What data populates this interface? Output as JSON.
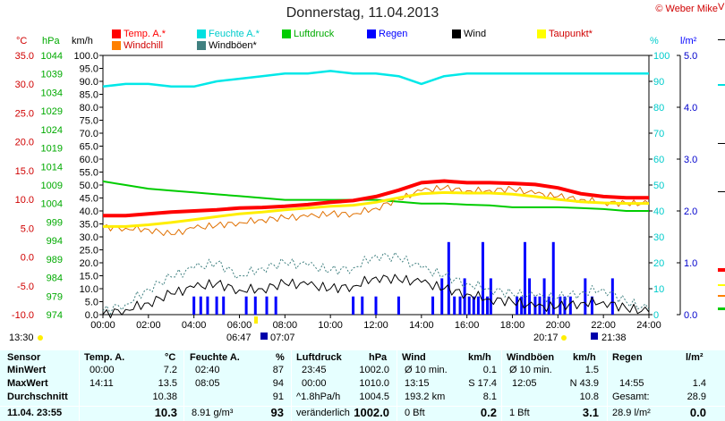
{
  "header": {
    "title": "Donnerstag, 11.04.2013",
    "copyright": "© Weber Mike"
  },
  "legend": [
    {
      "label": "Temp. A.*",
      "color": "#ff0000"
    },
    {
      "label": "Feuchte A.*",
      "color": "#00e0e0"
    },
    {
      "label": "Luftdruck",
      "color": "#00cc00"
    },
    {
      "label": "Regen",
      "color": "#0000ff"
    },
    {
      "label": "Wind",
      "color": "#000000"
    },
    {
      "label": "Taupunkt*",
      "color": "#ffff00"
    },
    {
      "label": "Windchill",
      "color": "#ff8000"
    },
    {
      "label": "Windböen*",
      "color": "#408080"
    }
  ],
  "axes": {
    "temp_unit": "°C",
    "press_unit": "hPa",
    "wind_unit": "km/h",
    "hum_unit": "%",
    "rain_unit": "l/m²",
    "temp_ticks": [
      "35.0",
      "30.0",
      "25.0",
      "20.0",
      "15.0",
      "10.0",
      "5.0",
      "0.0",
      "-5.0",
      "-10.0"
    ],
    "press_ticks": [
      "1044",
      "1039",
      "1034",
      "1029",
      "1024",
      "1019",
      "1014",
      "1009",
      "1004",
      "999",
      "994",
      "989",
      "984",
      "979",
      "974"
    ],
    "wind_ticks": [
      "100.0",
      "95.0",
      "90.0",
      "85.0",
      "80.0",
      "75.0",
      "70.0",
      "65.0",
      "60.0",
      "55.0",
      "50.0",
      "45.0",
      "40.0",
      "35.0",
      "30.0",
      "25.0",
      "20.0",
      "15.0",
      "10.0",
      "5.0",
      "0.0"
    ],
    "hum_ticks": [
      "100",
      "90",
      "80",
      "70",
      "60",
      "50",
      "40",
      "30",
      "20",
      "10",
      "0"
    ],
    "rain_ticks": [
      "5.0",
      "4.0",
      "3.0",
      "2.0",
      "1.0",
      "0.0"
    ],
    "x_ticks": [
      "00:00",
      "02:00",
      "04:00",
      "06:00",
      "08:00",
      "10:00",
      "12:00",
      "14:00",
      "16:00",
      "18:00",
      "20:00",
      "22:00",
      "24:00"
    ]
  },
  "sun": {
    "left_time": "13:30",
    "sunrise": "06:47",
    "moonset": "07:07",
    "sunset": "20:17",
    "moonrise": "21:38"
  },
  "chart_data": {
    "type": "line",
    "title": "Donnerstag, 11.04.2013",
    "x": [
      "00:00",
      "01:00",
      "02:00",
      "03:00",
      "04:00",
      "05:00",
      "06:00",
      "07:00",
      "08:00",
      "09:00",
      "10:00",
      "11:00",
      "12:00",
      "13:00",
      "14:00",
      "15:00",
      "16:00",
      "17:00",
      "18:00",
      "19:00",
      "20:00",
      "21:00",
      "22:00",
      "23:00",
      "24:00"
    ],
    "ylim_temp": [
      -10,
      35
    ],
    "series": [
      {
        "name": "Temp. A.*",
        "axis": "temp",
        "values": [
          7.2,
          7.2,
          7.5,
          7.8,
          8.0,
          8.2,
          8.5,
          8.6,
          8.8,
          9.1,
          9.5,
          9.8,
          10.5,
          11.6,
          12.9,
          13.2,
          12.9,
          12.9,
          12.8,
          12.6,
          12.0,
          11.0,
          10.5,
          10.3,
          10.3
        ]
      },
      {
        "name": "Taupunkt*",
        "axis": "temp",
        "values": [
          5.3,
          5.3,
          5.6,
          6.0,
          6.5,
          7.0,
          7.5,
          7.8,
          8.2,
          8.5,
          8.8,
          9.0,
          9.5,
          10.3,
          11.0,
          11.2,
          11.1,
          11.1,
          10.9,
          10.5,
          10.0,
          9.6,
          9.4,
          9.3,
          9.3
        ]
      },
      {
        "name": "Windchill",
        "axis": "temp",
        "values": [
          5.2,
          5.0,
          4.8,
          3.9,
          5.0,
          5.5,
          6.0,
          6.5,
          6.8,
          7.0,
          7.5,
          7.5,
          8.5,
          10.0,
          11.5,
          12.0,
          11.5,
          11.6,
          11.8,
          11.0,
          10.5,
          10.0,
          9.5,
          9.3,
          9.3
        ]
      },
      {
        "name": "Feuchte A.*",
        "axis": "hum",
        "values": [
          88,
          89,
          89,
          88,
          88,
          90,
          91,
          92,
          93,
          93,
          94,
          93,
          93,
          92,
          89,
          92,
          93,
          93,
          93,
          93,
          93,
          93,
          93,
          93,
          93
        ]
      },
      {
        "name": "Luftdruck",
        "axis": "press",
        "values": [
          1010.0,
          1009.0,
          1008.0,
          1007.5,
          1007.0,
          1006.5,
          1006.0,
          1005.5,
          1005.0,
          1005.0,
          1005.0,
          1005.0,
          1005.0,
          1004.5,
          1004.0,
          1004.0,
          1003.7,
          1003.5,
          1003.0,
          1003.0,
          1003.0,
          1002.8,
          1002.5,
          1002.0,
          1002.0
        ]
      },
      {
        "name": "Wind",
        "axis": "wind",
        "values": [
          0.1,
          2.0,
          4.5,
          8.0,
          10.5,
          12.0,
          9.5,
          10.0,
          12.0,
          11.5,
          10.0,
          11.0,
          14.5,
          13.5,
          12.5,
          10.0,
          8.0,
          6.0,
          5.0,
          3.0,
          3.0,
          4.5,
          5.0,
          2.5,
          1.0
        ]
      },
      {
        "name": "Windböen*",
        "axis": "wind",
        "values": [
          1.5,
          4.0,
          10.0,
          14.5,
          18.0,
          20.0,
          15.0,
          18.0,
          20.0,
          19.0,
          17.0,
          18.0,
          23.0,
          22.0,
          18.0,
          15.0,
          12.0,
          10.0,
          8.0,
          7.0,
          6.5,
          8.5,
          10.0,
          5.0,
          2.0
        ]
      }
    ],
    "rain_bars": [
      {
        "t": 4.0,
        "v": 0.35
      },
      {
        "t": 4.3,
        "v": 0.35
      },
      {
        "t": 4.6,
        "v": 0.35
      },
      {
        "t": 5.0,
        "v": 0.35
      },
      {
        "t": 5.3,
        "v": 0.35
      },
      {
        "t": 6.3,
        "v": 0.35
      },
      {
        "t": 6.7,
        "v": 0.35
      },
      {
        "t": 7.2,
        "v": 0.35
      },
      {
        "t": 7.6,
        "v": 0.35
      },
      {
        "t": 11.0,
        "v": 0.35
      },
      {
        "t": 11.4,
        "v": 0.35
      },
      {
        "t": 12.0,
        "v": 0.35
      },
      {
        "t": 13.0,
        "v": 0.35
      },
      {
        "t": 14.5,
        "v": 0.35
      },
      {
        "t": 14.9,
        "v": 0.7
      },
      {
        "t": 15.2,
        "v": 1.4
      },
      {
        "t": 15.45,
        "v": 0.35
      },
      {
        "t": 15.7,
        "v": 0.35
      },
      {
        "t": 15.9,
        "v": 0.7
      },
      {
        "t": 16.1,
        "v": 0.35
      },
      {
        "t": 16.3,
        "v": 0.35
      },
      {
        "t": 16.5,
        "v": 0.35
      },
      {
        "t": 16.7,
        "v": 1.4
      },
      {
        "t": 16.9,
        "v": 0.35
      },
      {
        "t": 17.05,
        "v": 0.7
      },
      {
        "t": 18.2,
        "v": 0.35
      },
      {
        "t": 18.4,
        "v": 0.35
      },
      {
        "t": 18.55,
        "v": 1.4
      },
      {
        "t": 18.75,
        "v": 0.7
      },
      {
        "t": 19.0,
        "v": 0.35
      },
      {
        "t": 19.2,
        "v": 0.35
      },
      {
        "t": 19.4,
        "v": 0.7
      },
      {
        "t": 19.6,
        "v": 0.35
      },
      {
        "t": 19.8,
        "v": 1.4
      },
      {
        "t": 20.1,
        "v": 0.35
      },
      {
        "t": 20.3,
        "v": 0.35
      },
      {
        "t": 20.55,
        "v": 0.35
      },
      {
        "t": 21.2,
        "v": 0.7
      },
      {
        "t": 21.5,
        "v": 0.35
      },
      {
        "t": 22.4,
        "v": 0.7
      }
    ],
    "rain_ylim": [
      0,
      5
    ],
    "ylim_press": [
      974,
      1044
    ],
    "ylim_wind": [
      0,
      100
    ],
    "ylim_hum": [
      0,
      100
    ],
    "frost_line": 0.0
  },
  "summary": {
    "sensor": {
      "header": "Sensor",
      "rows": [
        "MinWert",
        "MaxWert",
        "Durchschnitt",
        "11.04. 23:55"
      ]
    },
    "temp": {
      "header": "Temp. A.",
      "unit": "°C",
      "time": [
        "00:00",
        "14:11",
        "",
        ""
      ],
      "value": [
        "7.2",
        "13.5",
        "10.38",
        "10.3"
      ]
    },
    "hum": {
      "header": "Feuchte A.",
      "unit": "%",
      "time": [
        "02:40",
        "08:05",
        "",
        "8.91 g/m³"
      ],
      "value": [
        "87",
        "94",
        "91",
        "93"
      ]
    },
    "press": {
      "header": "Luftdruck",
      "unit": "hPa",
      "time": [
        "23:45",
        "00:00",
        "^1.8hPa/h",
        "veränderlich"
      ],
      "value": [
        "1002.0",
        "1010.0",
        "1004.5",
        "1002.0"
      ]
    },
    "wind": {
      "header": "Wind",
      "unit": "km/h",
      "time": [
        "Ø 10 min.",
        "13:15",
        "193.2 km",
        "0 Bft"
      ],
      "value": [
        "0.1",
        "S 17.4",
        "8.1",
        "0.2"
      ]
    },
    "gust": {
      "header": "Windböen",
      "unit": "km/h",
      "time": [
        "Ø 10 min.",
        "12:05",
        "",
        "1 Bft"
      ],
      "value": [
        "1.5",
        "N 43.9",
        "10.8",
        "3.1"
      ]
    },
    "rain": {
      "header": "Regen",
      "unit": "l/m²",
      "time": [
        "",
        "14:55",
        "Gesamt:",
        "28.9 l/m²"
      ],
      "value": [
        "",
        "1.4",
        "28.9",
        "0.0"
      ]
    }
  }
}
